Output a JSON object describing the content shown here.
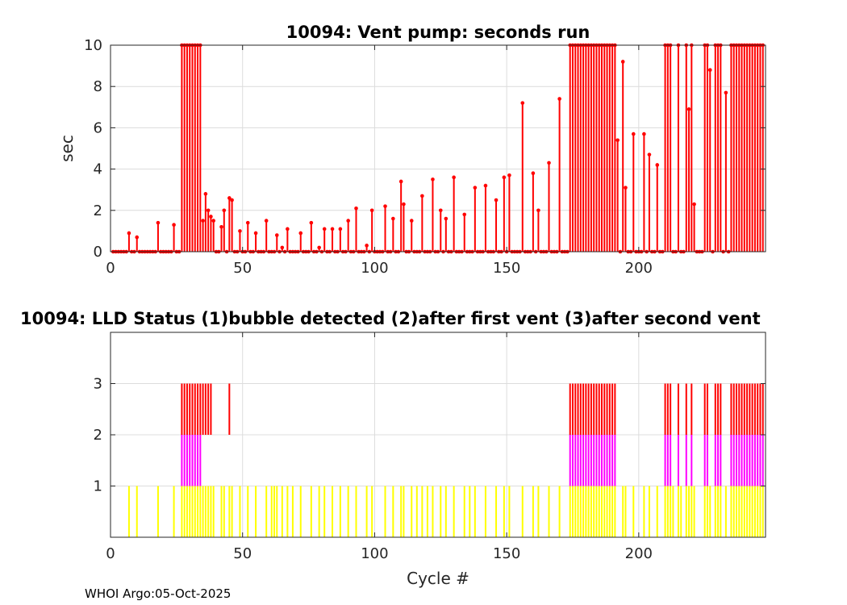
{
  "footer": "WHOI Argo:05-Oct-2025",
  "chart_data": [
    {
      "type": "stem",
      "title": "10094: Vent pump: seconds run",
      "xlabel": "",
      "ylabel": "sec",
      "xlim": [
        0,
        248
      ],
      "ylim": [
        0,
        10
      ],
      "xticks": [
        0,
        50,
        100,
        150,
        200
      ],
      "yticks": [
        0,
        2,
        4,
        6,
        8,
        10
      ],
      "grid": true,
      "color": "#ff0000",
      "points": [
        [
          7,
          0.9
        ],
        [
          10,
          0.7
        ],
        [
          18,
          1.4
        ],
        [
          24,
          1.3
        ],
        [
          27,
          10
        ],
        [
          28,
          10
        ],
        [
          29,
          10
        ],
        [
          30,
          10
        ],
        [
          31,
          10
        ],
        [
          32,
          10
        ],
        [
          33,
          10
        ],
        [
          34,
          10
        ],
        [
          35,
          1.5
        ],
        [
          36,
          2.8
        ],
        [
          37,
          2.0
        ],
        [
          38,
          1.7
        ],
        [
          39,
          1.5
        ],
        [
          42,
          1.2
        ],
        [
          43,
          2.0
        ],
        [
          45,
          2.6
        ],
        [
          46,
          2.5
        ],
        [
          49,
          1.0
        ],
        [
          52,
          1.4
        ],
        [
          55,
          0.9
        ],
        [
          59,
          1.5
        ],
        [
          63,
          0.8
        ],
        [
          65,
          0.2
        ],
        [
          67,
          1.1
        ],
        [
          72,
          0.9
        ],
        [
          76,
          1.4
        ],
        [
          79,
          0.2
        ],
        [
          81,
          1.1
        ],
        [
          84,
          1.1
        ],
        [
          87,
          1.1
        ],
        [
          90,
          1.5
        ],
        [
          93,
          2.1
        ],
        [
          97,
          0.3
        ],
        [
          99,
          2.0
        ],
        [
          104,
          2.2
        ],
        [
          107,
          1.6
        ],
        [
          110,
          3.4
        ],
        [
          111,
          2.3
        ],
        [
          114,
          1.5
        ],
        [
          118,
          2.7
        ],
        [
          122,
          3.5
        ],
        [
          125,
          2.0
        ],
        [
          127,
          1.6
        ],
        [
          130,
          3.6
        ],
        [
          134,
          1.8
        ],
        [
          138,
          3.1
        ],
        [
          142,
          3.2
        ],
        [
          146,
          2.5
        ],
        [
          149,
          3.6
        ],
        [
          151,
          3.7
        ],
        [
          156,
          7.2
        ],
        [
          160,
          3.8
        ],
        [
          162,
          2.0
        ],
        [
          166,
          4.3
        ],
        [
          170,
          7.4
        ],
        [
          174,
          10
        ],
        [
          175,
          10
        ],
        [
          176,
          10
        ],
        [
          177,
          10
        ],
        [
          178,
          10
        ],
        [
          179,
          10
        ],
        [
          180,
          10
        ],
        [
          181,
          10
        ],
        [
          182,
          10
        ],
        [
          183,
          10
        ],
        [
          184,
          10
        ],
        [
          185,
          10
        ],
        [
          186,
          10
        ],
        [
          187,
          10
        ],
        [
          188,
          10
        ],
        [
          189,
          10
        ],
        [
          190,
          10
        ],
        [
          191,
          10
        ],
        [
          192,
          5.4
        ],
        [
          194,
          9.2
        ],
        [
          195,
          3.1
        ],
        [
          198,
          5.7
        ],
        [
          202,
          5.7
        ],
        [
          204,
          4.7
        ],
        [
          207,
          4.2
        ],
        [
          210,
          10
        ],
        [
          211,
          10
        ],
        [
          212,
          10
        ],
        [
          215,
          10
        ],
        [
          218,
          10
        ],
        [
          219,
          6.9
        ],
        [
          220,
          10
        ],
        [
          221,
          2.3
        ],
        [
          225,
          10
        ],
        [
          226,
          10
        ],
        [
          227,
          8.8
        ],
        [
          229,
          10
        ],
        [
          230,
          10
        ],
        [
          231,
          10
        ],
        [
          233,
          7.7
        ],
        [
          235,
          10
        ],
        [
          236,
          10
        ],
        [
          237,
          10
        ],
        [
          238,
          10
        ],
        [
          239,
          10
        ],
        [
          240,
          10
        ],
        [
          241,
          10
        ],
        [
          242,
          10
        ],
        [
          243,
          10
        ],
        [
          244,
          10
        ],
        [
          245,
          10
        ],
        [
          246,
          10
        ],
        [
          247,
          10
        ]
      ]
    },
    {
      "type": "bar",
      "title": "10094: LLD Status   (1)bubble detected   (2)after first vent  (3)after second vent",
      "xlabel": "Cycle #",
      "ylabel": "",
      "xlim": [
        0,
        248
      ],
      "ylim": [
        0,
        4
      ],
      "xticks": [
        0,
        50,
        100,
        150,
        200
      ],
      "yticks": [
        1,
        2,
        3
      ],
      "grid": true,
      "series": [
        {
          "level": 3,
          "color": "#ff0000",
          "x": [
            27,
            28,
            29,
            30,
            31,
            32,
            33,
            34,
            35,
            36,
            37,
            38,
            45,
            174,
            175,
            176,
            177,
            178,
            179,
            180,
            181,
            182,
            183,
            184,
            185,
            186,
            187,
            188,
            189,
            190,
            191,
            210,
            211,
            212,
            215,
            218,
            220,
            225,
            226,
            229,
            230,
            231,
            235,
            236,
            237,
            238,
            239,
            240,
            241,
            242,
            243,
            244,
            245,
            246,
            247
          ]
        },
        {
          "level": 2,
          "color": "#ff00ff",
          "x": [
            27,
            28,
            29,
            30,
            31,
            32,
            33,
            34,
            174,
            175,
            176,
            177,
            178,
            179,
            180,
            181,
            182,
            183,
            184,
            185,
            186,
            187,
            188,
            189,
            190,
            191,
            210,
            211,
            212,
            215,
            218,
            220,
            225,
            226,
            229,
            230,
            231,
            235,
            236,
            237,
            238,
            239,
            240,
            241,
            242,
            243,
            244,
            245,
            246,
            247
          ]
        },
        {
          "level": 1,
          "color": "#ffff00",
          "x": [
            7,
            10,
            18,
            24,
            27,
            28,
            29,
            30,
            31,
            32,
            33,
            34,
            35,
            36,
            37,
            38,
            39,
            42,
            43,
            45,
            46,
            49,
            52,
            55,
            59,
            61,
            62,
            63,
            65,
            67,
            69,
            72,
            76,
            79,
            81,
            84,
            87,
            90,
            93,
            97,
            99,
            104,
            107,
            110,
            111,
            114,
            116,
            118,
            120,
            122,
            125,
            127,
            130,
            134,
            136,
            138,
            142,
            146,
            149,
            151,
            156,
            160,
            162,
            166,
            170,
            174,
            175,
            176,
            177,
            178,
            179,
            180,
            181,
            182,
            183,
            184,
            185,
            186,
            187,
            188,
            189,
            190,
            191,
            194,
            195,
            198,
            202,
            204,
            207,
            210,
            211,
            212,
            213,
            215,
            216,
            218,
            219,
            220,
            221,
            225,
            226,
            227,
            229,
            230,
            231,
            233,
            235,
            236,
            237,
            238,
            239,
            240,
            241,
            242,
            243,
            244,
            245,
            246,
            247
          ]
        }
      ]
    }
  ]
}
